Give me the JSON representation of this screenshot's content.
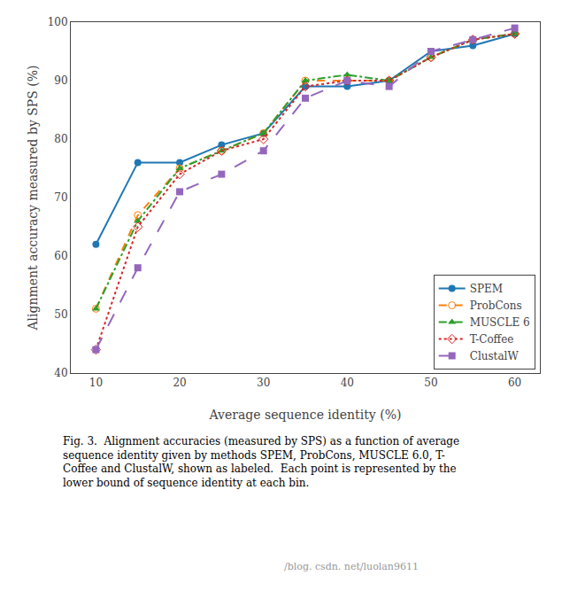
{
  "chart_data": {
    "type": "line",
    "x": [
      10,
      15,
      20,
      25,
      30,
      35,
      40,
      45,
      50,
      55,
      60
    ],
    "series": [
      {
        "name": "SPEM",
        "values": [
          62,
          76,
          76,
          79,
          81,
          89,
          89,
          90,
          95,
          96,
          98
        ],
        "marker": "circle",
        "line_style": "solid"
      },
      {
        "name": "ProbCons",
        "values": [
          51,
          67,
          75,
          78,
          81,
          90,
          90,
          90,
          94,
          97,
          98
        ],
        "marker": "circle-open",
        "line_style": "dash"
      },
      {
        "name": "MUSCLE 6",
        "values": [
          51,
          66,
          75,
          78,
          81,
          90,
          91,
          90,
          94,
          97,
          98
        ],
        "marker": "triangle-up",
        "line_style": "dashdot"
      },
      {
        "name": "T-Coffee",
        "values": [
          44,
          65,
          74,
          78,
          80,
          89,
          90,
          90,
          94,
          97,
          98
        ],
        "marker": "diamond-open",
        "line_style": "dot"
      },
      {
        "name": "ClustalW",
        "values": [
          44,
          58,
          71,
          74,
          78,
          87,
          90,
          89,
          95,
          97,
          99
        ],
        "marker": "square",
        "line_style": "longdash"
      }
    ],
    "xlabel": "Average sequence identity (%)",
    "ylabel": "Alignment accuracy measured by SPS (%)",
    "xlim": [
      7,
      63
    ],
    "ylim": [
      40,
      100
    ],
    "xticks": [
      10,
      20,
      30,
      40,
      50,
      60
    ],
    "yticks": [
      40,
      50,
      60,
      70,
      80,
      90,
      100
    ],
    "grid": false,
    "legend": "lower right",
    "annotations": [
      "Fig. 3.  Alignment accuracies (measured by SPS) as a function of average\nsequence identity given by methods SPEM, ProbCons, MUSCLE 6.0, T-\nCoffee and ClustalW, shown as labeled.  Each point is represented by the\nlower bound of sequence identity at each bin.",
      "/blog. csdn. net/luolan9611"
    ]
  }
}
